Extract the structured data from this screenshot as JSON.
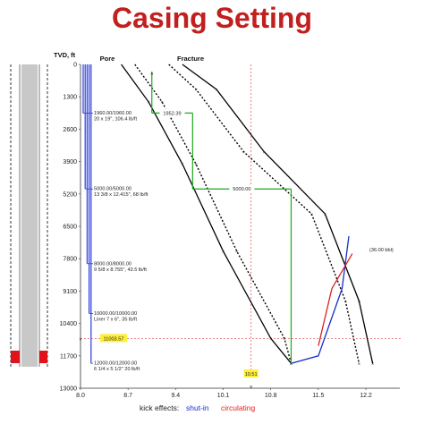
{
  "chart_data": {
    "type": "line",
    "title": "Casing Setting",
    "ylabel": "TVD, ft",
    "xlim": [
      8.0,
      12.7
    ],
    "ylim": [
      0,
      13000
    ],
    "y_inverted": true,
    "grid": false,
    "x_ticks": [
      "8.0",
      "8.7",
      "9.4",
      "10.1",
      "10.8",
      "11.5",
      "12.2"
    ],
    "y_ticks": [
      "0",
      "1300",
      "2600",
      "3900",
      "5200",
      "6500",
      "7800",
      "9100",
      "10400",
      "11700",
      "13000"
    ],
    "series": [
      {
        "name": "Pore",
        "style": "solid",
        "color": "#000000",
        "x": [
          8.6,
          9.0,
          9.5,
          10.1,
          10.8,
          11.1
        ],
        "y": [
          0,
          1500,
          4000,
          7500,
          11000,
          12000
        ]
      },
      {
        "name": "",
        "style": "dotted",
        "color": "#000000",
        "x": [
          8.8,
          9.2,
          9.7,
          10.3,
          11.0,
          11.1
        ],
        "y": [
          0,
          1500,
          4000,
          7500,
          11000,
          12000
        ]
      },
      {
        "name": "",
        "style": "dotted",
        "color": "#000000",
        "x": [
          9.3,
          9.7,
          10.4,
          11.4,
          11.9,
          12.1
        ],
        "y": [
          0,
          1000,
          3500,
          6000,
          9500,
          12000
        ]
      },
      {
        "name": "Fracture",
        "style": "solid",
        "color": "#000000",
        "x": [
          9.5,
          10.0,
          10.7,
          11.6,
          12.1,
          12.3
        ],
        "y": [
          0,
          1000,
          3500,
          6000,
          9500,
          12000
        ]
      },
      {
        "name": "shut-in",
        "style": "solid",
        "color": "#1530c8",
        "x": [
          11.1,
          11.5,
          11.85,
          11.95
        ],
        "y": [
          12000,
          11700,
          9000,
          6900
        ]
      },
      {
        "name": "circulating",
        "style": "solid",
        "color": "#e02020",
        "x": [
          11.5,
          11.7,
          12.0
        ],
        "y": [
          11300,
          9000,
          7600
        ]
      }
    ],
    "mud_limit_line": {
      "x": 10.51,
      "label": "10.51",
      "color": "#e06060"
    },
    "setting_depth_line": {
      "y": 11003.57,
      "label": "11003.57",
      "color": "#e06060"
    },
    "kick_label": "(36.00 bbl)",
    "casing_selection": {
      "color": "#1ea81e",
      "intervals": [
        {
          "label": "1952.39",
          "x": 9.6,
          "y_top": 0,
          "y_bottom": 1952.39,
          "y_label": 1950
        },
        {
          "label": "5000.00",
          "x": 10.55,
          "y_top": 1952.39,
          "y_bottom": 5000,
          "y_label": 5000
        }
      ]
    },
    "casing_strings": [
      {
        "depth_label": "1960.00/1960.00",
        "desc": "20 x 19\", 106.4 lb/ft",
        "depth": 1960
      },
      {
        "depth_label": "5000.00/5000.00",
        "desc": "13 3/8 x 12.415\", 68 lb/ft",
        "depth": 5000
      },
      {
        "depth_label": "8000.00/8000.00",
        "desc": "9 5/8 x 8.755\", 43.5 lb/ft",
        "depth": 8000
      },
      {
        "depth_label": "10000.00/10000.00",
        "desc": "Liner 7 x 6\", 35 lb/ft",
        "depth": 10000
      },
      {
        "depth_label": "12000.00/12000.00",
        "desc": "6 1/4 x 5 1/2\" 20 lb/ft",
        "depth": 12000
      }
    ],
    "footer": {
      "prefix": "kick effects:",
      "shut_in_label": "shut-in",
      "circulating_label": "circulating",
      "shut_in_color": "#1530c8",
      "circulating_color": "#e02020"
    },
    "top_labels": {
      "pore": "Pore",
      "fracture": "Fracture"
    }
  }
}
